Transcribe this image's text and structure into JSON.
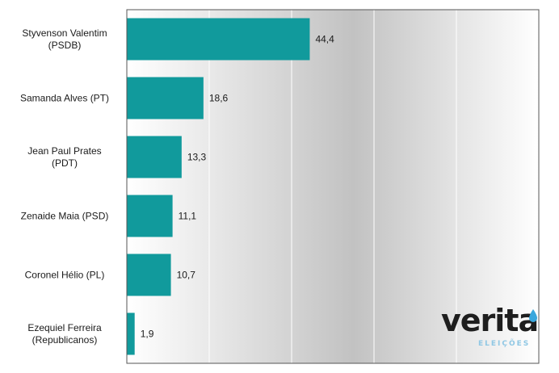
{
  "chart_data": {
    "type": "bar",
    "orientation": "horizontal",
    "categories": [
      [
        "Styvenson Valentim",
        "(PSDB)"
      ],
      [
        "Samanda Alves (PT)"
      ],
      [
        "Jean Paul Prates",
        "(PDT)"
      ],
      [
        "Zenaide Maia (PSD)"
      ],
      [
        "Coronel Hélio (PL)"
      ],
      [
        "Ezequiel Ferreira",
        "(Republicanos)"
      ]
    ],
    "values": [
      44.4,
      18.6,
      13.3,
      11.1,
      10.7,
      1.9
    ],
    "value_labels": [
      "44,4",
      "18,6",
      "13,3",
      "11,1",
      "10,7",
      "1,9"
    ],
    "title": "",
    "xlabel": "",
    "ylabel": "",
    "xlim": [
      0,
      100
    ],
    "grid": "vertical",
    "legend": "none",
    "colors": {
      "bar": "#119a9c",
      "grid": "#ffffff",
      "frame": "#555555"
    }
  },
  "logo": {
    "word": "verita",
    "sub": "ELEIÇÕES",
    "sub_color": "#8fc7e4",
    "drop_color": "#3aa7dd"
  }
}
